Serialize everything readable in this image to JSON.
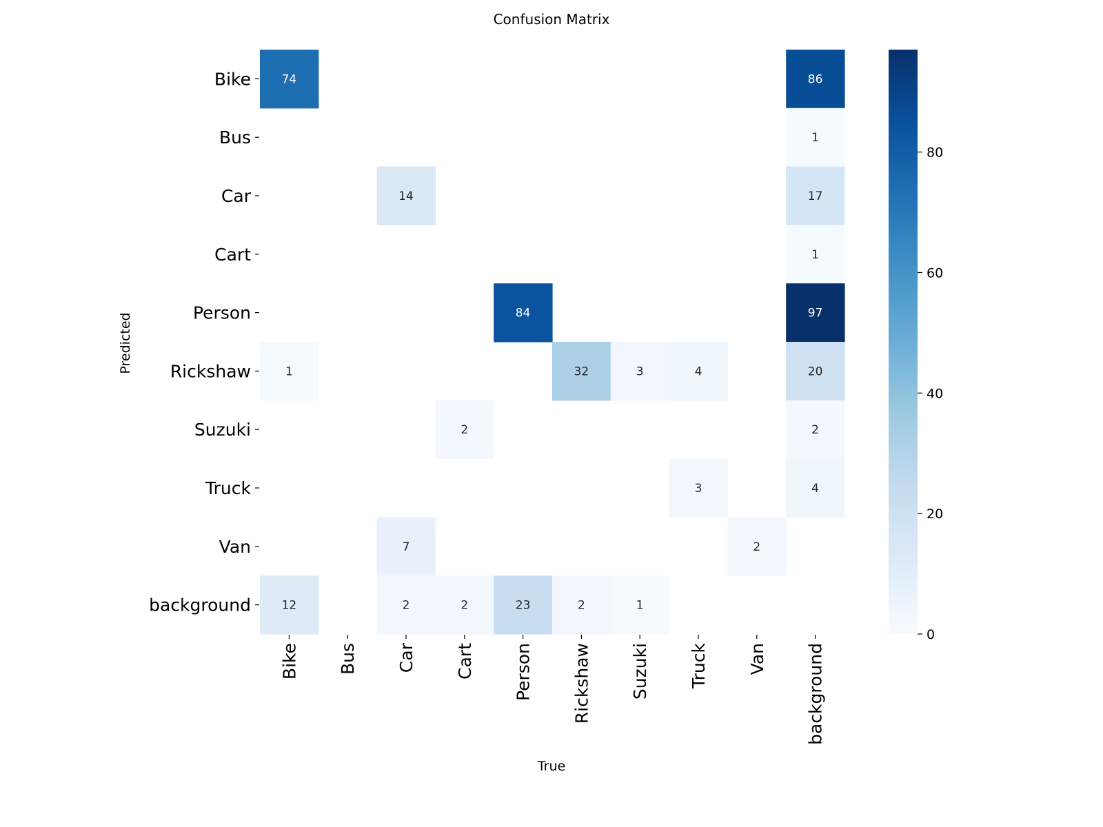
{
  "chart_data": {
    "type": "heatmap",
    "title": "Confusion Matrix",
    "xlabel": "True",
    "ylabel": "Predicted",
    "x_categories": [
      "Bike",
      "Bus",
      "Car",
      "Cart",
      "Person",
      "Rickshaw",
      "Suzuki",
      "Truck",
      "Van",
      "background"
    ],
    "y_categories": [
      "Bike",
      "Bus",
      "Car",
      "Cart",
      "Person",
      "Rickshaw",
      "Suzuki",
      "Truck",
      "Van",
      "background"
    ],
    "values": [
      [
        74,
        0,
        0,
        0,
        0,
        0,
        0,
        0,
        0,
        86
      ],
      [
        0,
        0,
        0,
        0,
        0,
        0,
        0,
        0,
        0,
        1
      ],
      [
        0,
        0,
        14,
        0,
        0,
        0,
        0,
        0,
        0,
        17
      ],
      [
        0,
        0,
        0,
        0,
        0,
        0,
        0,
        0,
        0,
        1
      ],
      [
        0,
        0,
        0,
        0,
        84,
        0,
        0,
        0,
        0,
        97
      ],
      [
        1,
        0,
        0,
        0,
        0,
        32,
        3,
        4,
        0,
        20
      ],
      [
        0,
        0,
        0,
        2,
        0,
        0,
        0,
        0,
        0,
        2
      ],
      [
        0,
        0,
        0,
        0,
        0,
        0,
        0,
        3,
        0,
        4
      ],
      [
        0,
        0,
        7,
        0,
        0,
        0,
        0,
        0,
        2,
        0
      ],
      [
        12,
        0,
        2,
        2,
        23,
        2,
        1,
        0,
        0,
        0
      ]
    ],
    "zero_cells_shown": false,
    "colorbar": {
      "min": 0,
      "max": 97,
      "ticks": [
        0,
        20,
        40,
        60,
        80
      ],
      "colormap": "Blues",
      "colors": [
        "#f7fbff",
        "#deebf7",
        "#c6dbef",
        "#9ecae1",
        "#6baed6",
        "#4292c6",
        "#2171b5",
        "#08519c",
        "#08306b"
      ]
    }
  }
}
